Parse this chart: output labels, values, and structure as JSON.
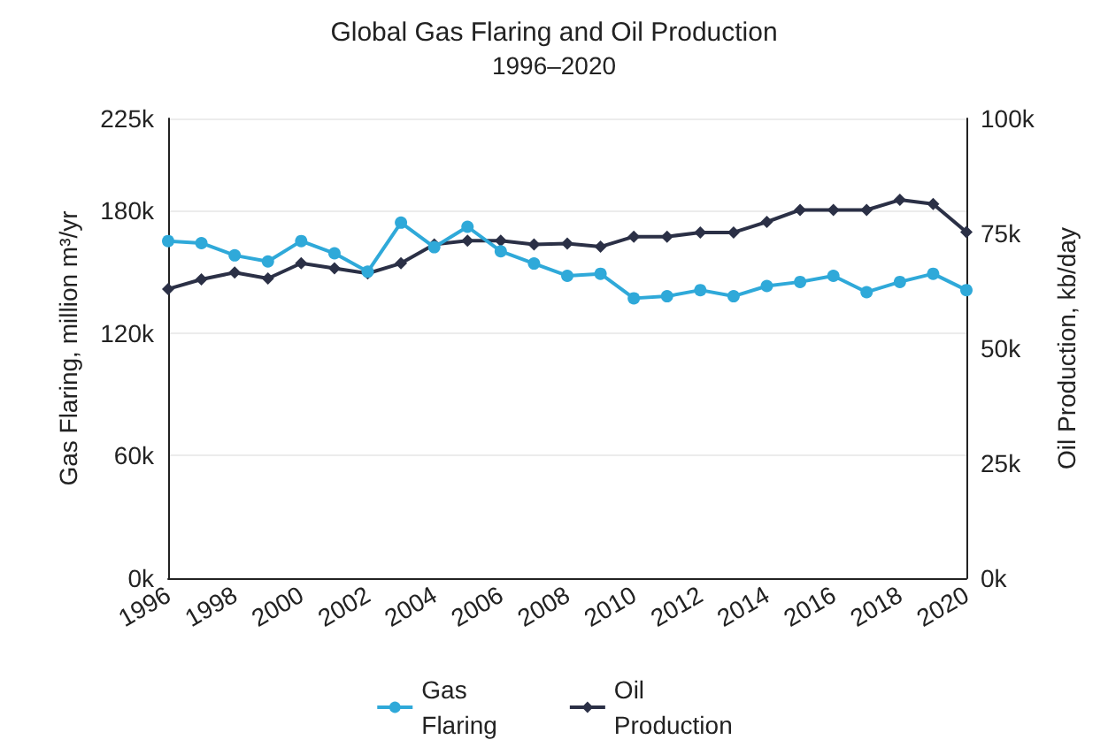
{
  "chart_data": {
    "type": "line",
    "title": "Global Gas Flaring and Oil Production",
    "subtitle": "1996–2020",
    "ylabel": "Gas Flaring, million m³/yr",
    "y2label": "Oil Production, kb/day",
    "categories": [
      "1996",
      null,
      "1998",
      null,
      "2000",
      null,
      "2002",
      null,
      "2004",
      null,
      "2006",
      null,
      "2008",
      null,
      "2010",
      null,
      "2012",
      null,
      "2014",
      null,
      "2016",
      null,
      "2018",
      null,
      "2020"
    ],
    "series": [
      {
        "name": "Gas Flaring",
        "color": "#2fa9d9",
        "marker": "circle",
        "values": [
          165000,
          164000,
          158000,
          155000,
          165000,
          159000,
          150000,
          174000,
          162000,
          172000,
          160000,
          154000,
          148000,
          149000,
          137000,
          138000,
          141000,
          138000,
          143000,
          145000,
          148000,
          140000,
          145000,
          149000,
          141000
        ]
      },
      {
        "name": "Oil Production",
        "color": "#2b3046",
        "marker": "diamond",
        "axis": "y2",
        "values": [
          62900,
          65000,
          66500,
          65200,
          68500,
          67400,
          66300,
          68500,
          72600,
          73400,
          73400,
          72600,
          72800,
          72100,
          74300,
          74300,
          75200,
          75200,
          77500,
          80100,
          80100,
          80100,
          82300,
          81400,
          75300
        ]
      }
    ],
    "ylim": [
      0,
      225000
    ],
    "yticks": [
      {
        "value": 0,
        "label": "0k"
      },
      {
        "value": 60000,
        "label": "60k"
      },
      {
        "value": 120000,
        "label": "120k"
      },
      {
        "value": 180000,
        "label": "180k"
      },
      {
        "value": 225000,
        "label": "225k"
      }
    ],
    "y2lim": [
      0,
      100000
    ],
    "y2ticks": [
      {
        "value": 0,
        "label": "0k"
      },
      {
        "value": 25000,
        "label": "25k"
      },
      {
        "value": 50000,
        "label": "50k"
      },
      {
        "value": 75000,
        "label": "75k"
      },
      {
        "value": 100000,
        "label": "100k"
      }
    ],
    "grid": "y",
    "legend": "bottom"
  }
}
